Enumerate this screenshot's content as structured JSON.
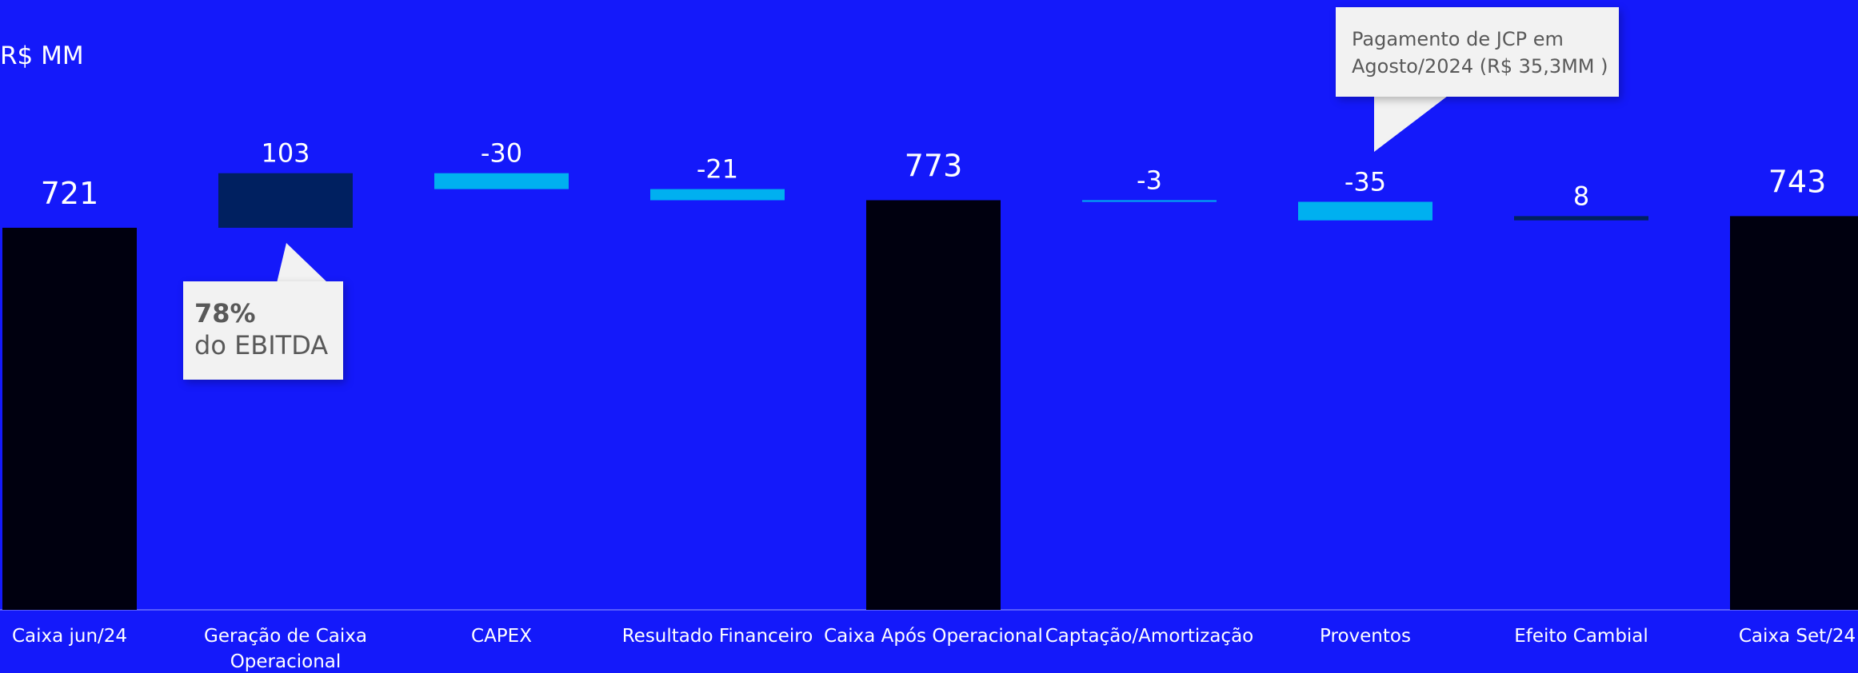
{
  "unit_label": "R$ MM",
  "colors": {
    "background": "#1419FA",
    "total_bar": "#00000F",
    "positive_bar": "#002060",
    "negative_bar": "#00B0F0",
    "label_text": "#FFFFFF",
    "axis_line": "#9AA0FF"
  },
  "chart_data": {
    "type": "bar",
    "subtype": "waterfall",
    "title": "",
    "unit": "R$ MM",
    "categories": [
      "Caixa jun/24",
      "Geração de Caixa Operacional",
      "CAPEX",
      "Resultado Financeiro",
      "Caixa Após Operacional",
      "Captação/Amortização",
      "Proventos",
      "Efeito Cambial",
      "Caixa Set/24"
    ],
    "values": [
      721,
      103,
      -30,
      -21,
      773,
      -3,
      -35,
      8,
      743
    ],
    "value_labels": [
      "721",
      "103",
      "-30",
      "-21",
      "773",
      "-3",
      "-35",
      "8",
      "743"
    ],
    "bar_kinds": [
      "total",
      "increase",
      "decrease",
      "decrease",
      "total",
      "decrease",
      "decrease",
      "increase",
      "total"
    ],
    "ylim": [
      0,
      840
    ],
    "grid": false,
    "legend": "none"
  },
  "callouts": {
    "jcp": "Pagamento de JCP em Agosto/2024 (R$ 35,3MM )",
    "ebitda_pct": "78%",
    "ebitda_text": "do EBITDA"
  }
}
